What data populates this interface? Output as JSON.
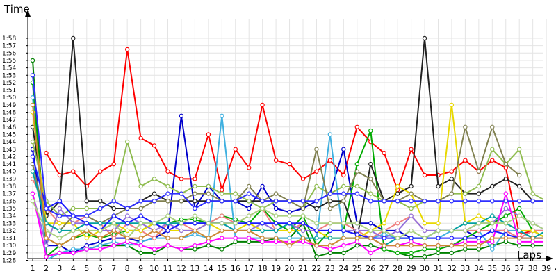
{
  "chart_data": {
    "type": "line",
    "ylabel": "Time",
    "xlabel": "Laps",
    "x": [
      1,
      2,
      3,
      4,
      5,
      6,
      7,
      8,
      9,
      10,
      11,
      12,
      13,
      14,
      15,
      16,
      17,
      18,
      19,
      20,
      21,
      22,
      23,
      24,
      25,
      26,
      27,
      28,
      29,
      30,
      31,
      32,
      33,
      34,
      35,
      36,
      37,
      38,
      39,
      40
    ],
    "y_tick_labels": [
      "1:28",
      "1:29",
      "1:30",
      "1:31",
      "1:32",
      "1:33",
      "1:34",
      "1:35",
      "1:36",
      "1:37",
      "1:38",
      "1:39",
      "1:40",
      "1:41",
      "1:42",
      "1:43",
      "1:44",
      "1:45",
      "1:46",
      "1:47",
      "1:48",
      "1:49",
      "1:50",
      "1:51",
      "1:52",
      "1:53",
      "1:54",
      "1:55",
      "1:56",
      "1:57",
      "1:58"
    ],
    "x_tick_labels": [
      "1",
      "2",
      "3",
      "4",
      "5",
      "6",
      "7",
      "8",
      "9",
      "10",
      "11",
      "12",
      "13",
      "14",
      "15",
      "16",
      "17",
      "18",
      "19",
      "20",
      "21",
      "22",
      "23",
      "24",
      "25",
      "26",
      "27",
      "28",
      "29",
      "30",
      "31",
      "32",
      "33",
      "34",
      "35",
      "36",
      "37",
      "38",
      "39",
      "40"
    ],
    "y_unit": "seconds",
    "ylim": [
      87,
      118
    ],
    "xlim": [
      0.8,
      40.2
    ],
    "grid": true,
    "series": [
      {
        "color": "#ff0000",
        "values": [
          null,
          102.5,
          99.5,
          100,
          98,
          100,
          101,
          116.5,
          104.5,
          103.5,
          100,
          99,
          99,
          105,
          97.5,
          103,
          100.5,
          109,
          101.5,
          101,
          99,
          100,
          101.5,
          99.5,
          106,
          104,
          102.5,
          97.5,
          103,
          99.5,
          99.5,
          100,
          101.5,
          100,
          101.5,
          100.5,
          91.5,
          92,
          91,
          90.5
        ]
      },
      {
        "color": "#008000",
        "values": [
          115,
          88.5,
          89,
          89,
          89.5,
          90,
          90,
          90,
          89,
          89,
          90,
          89.5,
          89.5,
          90,
          89.5,
          90.5,
          90.5,
          90.5,
          91,
          91,
          93,
          88.5,
          89,
          89,
          90,
          90,
          89.5,
          89,
          88.5,
          88.5,
          89,
          89,
          89.5,
          89.5,
          90,
          90.5,
          90,
          90,
          90,
          90
        ]
      },
      {
        "color": "#0000cc",
        "values": [
          103,
          90,
          90,
          89,
          90,
          90.5,
          91,
          91,
          90.5,
          91,
          92,
          107.5,
          95,
          98,
          96,
          96,
          95,
          98,
          95,
          94.5,
          95,
          96,
          97,
          103,
          93,
          93,
          92,
          92,
          91,
          91,
          92,
          92,
          92,
          91,
          92,
          92,
          91,
          92,
          92,
          92
        ]
      },
      {
        "color": "#00aa00",
        "values": [
          112,
          88.5,
          90,
          91,
          91.5,
          91,
          91.5,
          92,
          92,
          93,
          93,
          93.5,
          93.5,
          93,
          94,
          93.5,
          93,
          95,
          93,
          92,
          94,
          90,
          92,
          92,
          101,
          105.5,
          89.5,
          89,
          89,
          89.5,
          89.5,
          90,
          91,
          92,
          93,
          94,
          95,
          92,
          91,
          90
        ]
      },
      {
        "color": "#3fb0e0",
        "values": [
          110,
          88,
          89,
          89.5,
          89.5,
          90,
          90.5,
          90,
          90.5,
          91,
          91,
          91,
          91.5,
          91,
          107.5,
          91,
          91,
          91,
          91,
          91,
          91,
          91,
          105,
          91,
          91,
          91,
          91.5,
          91,
          91,
          91,
          91,
          92,
          92,
          92,
          89.5,
          92,
          92,
          91,
          91,
          91
        ]
      },
      {
        "color": "#222222",
        "values": [
          106,
          94,
          96,
          118,
          96,
          96,
          95,
          95,
          96,
          97,
          96,
          96,
          96,
          96,
          96,
          96,
          96,
          96,
          96,
          96,
          96,
          95,
          96,
          96,
          91,
          101,
          96,
          97,
          98,
          118,
          98,
          99,
          97,
          97,
          98,
          99,
          98,
          96,
          96,
          97
        ]
      },
      {
        "color": "#f08080",
        "values": [
          99,
          95,
          93,
          93,
          94,
          93,
          91,
          93,
          92,
          91,
          93,
          93,
          92,
          93,
          94,
          93,
          94,
          95,
          92,
          92,
          93,
          92,
          93,
          93,
          92,
          91,
          92,
          93,
          94,
          92,
          92,
          92,
          92,
          92,
          92,
          92,
          91,
          92,
          92,
          92
        ]
      },
      {
        "color": "#8fbc50",
        "values": [
          104,
          96,
          94,
          95,
          95,
          95,
          96,
          104,
          98,
          99,
          98,
          97,
          98,
          98,
          97,
          97,
          96,
          95,
          96,
          96,
          95,
          98,
          97,
          98,
          98,
          97,
          96,
          96,
          95,
          96,
          96,
          97,
          97,
          98,
          103,
          101,
          103,
          97,
          96,
          96
        ]
      },
      {
        "color": "#e8d800",
        "values": [
          108,
          93,
          93,
          93,
          91,
          92,
          93,
          92,
          92,
          93,
          92,
          92,
          92,
          93,
          92,
          92,
          93,
          92,
          92,
          92,
          92,
          92,
          91,
          91,
          91,
          92,
          93,
          98,
          97,
          93,
          93,
          109,
          93,
          94,
          93,
          93,
          92,
          92,
          91,
          91
        ]
      },
      {
        "color": "#9370db",
        "values": [
          97,
          90,
          95,
          93,
          93,
          92,
          92,
          94,
          93,
          92,
          93,
          92,
          92,
          93,
          93,
          92,
          92,
          93,
          92,
          93,
          92,
          92,
          92,
          92,
          92,
          92,
          91,
          92,
          94,
          92,
          92,
          92,
          92,
          93,
          93,
          95,
          94,
          93,
          92,
          99.5
        ]
      },
      {
        "color": "#808050",
        "values": [
          101,
          93,
          92,
          94,
          94,
          93,
          94,
          95,
          95,
          96,
          96,
          96,
          97,
          97,
          96,
          96,
          98,
          96,
          97,
          96,
          95,
          103,
          95,
          96,
          100,
          99,
          96,
          96,
          97,
          96,
          96,
          97,
          106,
          100,
          106,
          101,
          99.5,
          null,
          null,
          null
        ]
      },
      {
        "color": "#00a0a0",
        "values": [
          100,
          93,
          92,
          92,
          93,
          93,
          93,
          93,
          93,
          93,
          93,
          93,
          93,
          93,
          93,
          92,
          92,
          92,
          92,
          93,
          91,
          91,
          91,
          91,
          91,
          91,
          90,
          91,
          91,
          91,
          92,
          92,
          93,
          93,
          94,
          93,
          92,
          91,
          92,
          92
        ]
      },
      {
        "color": "#ff00ff",
        "values": [
          97,
          88.5,
          89,
          89,
          89.5,
          89.5,
          90,
          90.5,
          90,
          89.5,
          90,
          89.5,
          90,
          90.5,
          91,
          91,
          91,
          90.5,
          90.5,
          90.5,
          90.5,
          90,
          89.5,
          90,
          90.5,
          89,
          90,
          90,
          90.5,
          90,
          90,
          90,
          90.5,
          90.5,
          90.5,
          97,
          90.5,
          90.5,
          90.5,
          90
        ]
      },
      {
        "color": "#1a1aff",
        "values": [
          102,
          95,
          96,
          94,
          93,
          92,
          94,
          93,
          94,
          93,
          92,
          93,
          93,
          93,
          93,
          93,
          93,
          93,
          93,
          93,
          93,
          92,
          92,
          92,
          91.5,
          91,
          91,
          91,
          91,
          91,
          91,
          91,
          91,
          91,
          92,
          91.5,
          91,
          91,
          91,
          91.5
        ]
      },
      {
        "color": "#aad080",
        "values": [
          96,
          92,
          91,
          92,
          92,
          92,
          93,
          91,
          93,
          93,
          94,
          93,
          94,
          93,
          93,
          93,
          94,
          95,
          94,
          94,
          94,
          93,
          93,
          93,
          93,
          92,
          92,
          91,
          92,
          91,
          92,
          92,
          92,
          93,
          93,
          93,
          94,
          93,
          92,
          92
        ]
      },
      {
        "color": "#cc8833",
        "values": [
          109,
          91,
          90,
          91,
          92,
          91,
          92,
          91,
          91,
          92,
          91,
          91,
          92,
          91,
          92,
          92,
          92,
          91,
          91,
          90,
          91,
          90,
          90,
          91,
          91,
          91,
          90,
          90,
          90,
          90,
          90,
          90,
          90,
          90,
          91,
          91,
          91,
          91,
          91,
          91
        ]
      },
      {
        "color": "#3030ff",
        "values": [
          113,
          95,
          94,
          94,
          94,
          95,
          96,
          95,
          96,
          96,
          97,
          97,
          95,
          96,
          96,
          96,
          97,
          96,
          96,
          96,
          96,
          96,
          97,
          97,
          97,
          96,
          96,
          96,
          96,
          96,
          96,
          96,
          96,
          96,
          96,
          96,
          96,
          96,
          96,
          96
        ]
      }
    ]
  }
}
